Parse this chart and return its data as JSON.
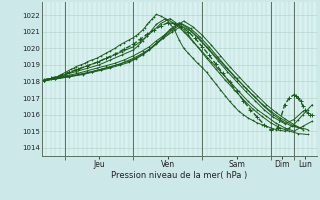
{
  "bg_color": "#cce8e8",
  "plot_bg_color": "#d8f0f0",
  "grid_color": "#b0d0c8",
  "line_color": "#1a5c1a",
  "ylabel_ticks": [
    1014,
    1015,
    1016,
    1017,
    1018,
    1019,
    1020,
    1021,
    1022
  ],
  "ymin": 1013.5,
  "ymax": 1022.8,
  "xlabel": "Pression niveau de la mer( hPa )",
  "day_labels": [
    "Jeu",
    "Ven",
    "Sam",
    "Dim",
    "Lun"
  ],
  "day_sep_x": [
    0.5,
    2.0,
    3.5,
    5.0,
    5.5
  ],
  "day_tick_x": [
    1.25,
    2.75,
    4.25,
    5.25,
    5.75
  ],
  "xmin": 0.0,
  "xmax": 6.0,
  "lines": [
    {
      "x": [
        0.05,
        0.15,
        0.25,
        0.35,
        0.45,
        0.55,
        0.65,
        0.7,
        0.75,
        0.85,
        0.95,
        1.0,
        1.1,
        1.2,
        1.3,
        1.4,
        1.5,
        1.6,
        1.7,
        1.8,
        1.9,
        2.0,
        2.05,
        2.1,
        2.2,
        2.25,
        2.3,
        2.35,
        2.4,
        2.45,
        2.5,
        2.6,
        2.7,
        2.8,
        2.9,
        3.0,
        3.1,
        3.2,
        3.3,
        3.4,
        3.5,
        3.6,
        3.7,
        3.8,
        3.9,
        4.0,
        4.1,
        4.2,
        4.3,
        4.4,
        4.5,
        4.6,
        4.7,
        4.8,
        4.9,
        5.0,
        5.1,
        5.2,
        5.3,
        5.35,
        5.4,
        5.5,
        5.6,
        5.7,
        5.8,
        5.9
      ],
      "y": [
        1018.1,
        1018.15,
        1018.2,
        1018.3,
        1018.45,
        1018.6,
        1018.75,
        1018.8,
        1018.9,
        1019.0,
        1019.1,
        1019.2,
        1019.3,
        1019.4,
        1019.55,
        1019.7,
        1019.85,
        1020.0,
        1020.2,
        1020.35,
        1020.5,
        1020.65,
        1020.75,
        1020.85,
        1021.1,
        1021.25,
        1021.45,
        1021.6,
        1021.75,
        1021.9,
        1022.05,
        1021.95,
        1021.8,
        1021.5,
        1021.1,
        1020.5,
        1020.0,
        1019.7,
        1019.4,
        1019.1,
        1018.85,
        1018.55,
        1018.2,
        1017.85,
        1017.5,
        1017.15,
        1016.8,
        1016.5,
        1016.2,
        1016.0,
        1015.8,
        1015.65,
        1015.5,
        1015.4,
        1015.3,
        1015.2,
        1015.1,
        1015.05,
        1015.0,
        1015.1,
        1015.2,
        1015.4,
        1015.7,
        1016.0,
        1016.3,
        1016.6
      ]
    },
    {
      "x": [
        0.05,
        0.25,
        0.5,
        0.75,
        1.0,
        1.25,
        1.5,
        1.75,
        2.0,
        2.1,
        2.2,
        2.3,
        2.4,
        2.5,
        2.7,
        2.9,
        3.1,
        3.3,
        3.5,
        3.7,
        3.9,
        4.1,
        4.3,
        4.5,
        4.7,
        4.9,
        5.1,
        5.3,
        5.5,
        5.7,
        5.9
      ],
      "y": [
        1018.1,
        1018.2,
        1018.4,
        1018.6,
        1018.8,
        1019.0,
        1019.3,
        1019.6,
        1019.9,
        1020.15,
        1020.45,
        1020.75,
        1021.1,
        1021.45,
        1021.8,
        1021.5,
        1021.0,
        1020.4,
        1019.8,
        1019.2,
        1018.6,
        1018.0,
        1017.4,
        1016.8,
        1016.3,
        1015.9,
        1015.5,
        1015.2,
        1015.0,
        1015.3,
        1015.6
      ]
    },
    {
      "x": [
        0.05,
        0.25,
        0.5,
        0.75,
        1.0,
        1.25,
        1.5,
        1.75,
        2.0,
        2.15,
        2.3,
        2.45,
        2.6,
        2.8,
        3.0,
        3.2,
        3.4,
        3.6,
        3.8,
        4.0,
        4.2,
        4.4,
        4.6,
        4.8,
        5.0,
        5.2,
        5.4,
        5.6,
        5.8
      ],
      "y": [
        1018.0,
        1018.2,
        1018.4,
        1018.7,
        1018.95,
        1019.2,
        1019.5,
        1019.8,
        1020.1,
        1020.4,
        1020.75,
        1021.1,
        1021.5,
        1021.8,
        1021.4,
        1020.8,
        1020.1,
        1019.4,
        1018.75,
        1018.1,
        1017.5,
        1016.9,
        1016.35,
        1015.9,
        1015.5,
        1015.2,
        1015.0,
        1014.85,
        1014.8
      ]
    },
    {
      "x": [
        0.05,
        0.3,
        0.6,
        0.9,
        1.1,
        1.3,
        1.5,
        1.7,
        2.0,
        2.2,
        2.35,
        2.5,
        2.65,
        2.8,
        3.0,
        3.2,
        3.4,
        3.6,
        3.8,
        4.0,
        4.2,
        4.4,
        4.6,
        4.8,
        5.0,
        5.2,
        5.5,
        5.8
      ],
      "y": [
        1018.05,
        1018.15,
        1018.3,
        1018.45,
        1018.6,
        1018.75,
        1018.9,
        1019.05,
        1019.4,
        1019.7,
        1019.95,
        1020.3,
        1020.7,
        1021.15,
        1021.55,
        1021.2,
        1020.7,
        1020.1,
        1019.5,
        1018.9,
        1018.3,
        1017.75,
        1017.2,
        1016.65,
        1016.2,
        1015.8,
        1015.3,
        1015.1
      ]
    },
    {
      "x": [
        0.05,
        0.3,
        0.55,
        0.8,
        1.0,
        1.2,
        1.4,
        1.6,
        1.8,
        2.0,
        2.2,
        2.35,
        2.5,
        2.7,
        2.9,
        3.1,
        3.3,
        3.5,
        3.7,
        3.9,
        4.1,
        4.3,
        4.5,
        4.7,
        4.9,
        5.1,
        5.3,
        5.5,
        5.7
      ],
      "y": [
        1018.05,
        1018.2,
        1018.35,
        1018.5,
        1018.65,
        1018.8,
        1018.95,
        1019.1,
        1019.3,
        1019.55,
        1019.85,
        1020.1,
        1020.45,
        1020.85,
        1021.3,
        1021.65,
        1021.3,
        1020.8,
        1020.2,
        1019.55,
        1018.9,
        1018.3,
        1017.7,
        1017.15,
        1016.6,
        1016.15,
        1015.75,
        1015.4,
        1015.1
      ]
    },
    {
      "x": [
        0.05,
        0.3,
        0.6,
        0.9,
        1.1,
        1.3,
        1.5,
        1.7,
        1.9,
        2.05,
        2.2,
        2.35,
        2.5,
        2.65,
        2.85,
        3.05,
        3.25,
        3.45,
        3.65,
        3.85,
        4.05,
        4.25,
        4.45,
        4.65,
        4.85,
        5.05,
        5.25,
        5.45,
        5.65
      ],
      "y": [
        1018.05,
        1018.18,
        1018.32,
        1018.48,
        1018.6,
        1018.72,
        1018.88,
        1019.05,
        1019.22,
        1019.4,
        1019.65,
        1019.95,
        1020.3,
        1020.65,
        1021.1,
        1021.5,
        1021.2,
        1020.7,
        1020.1,
        1019.45,
        1018.8,
        1018.2,
        1017.6,
        1017.05,
        1016.5,
        1016.0,
        1015.6,
        1015.3,
        1015.2
      ]
    },
    {
      "x": [
        0.05,
        0.3,
        0.6,
        0.9,
        1.1,
        1.3,
        1.5,
        1.7,
        1.9,
        2.05,
        2.2,
        2.35,
        2.5,
        2.65,
        2.85,
        3.05,
        3.25,
        3.45,
        3.65,
        3.85,
        4.05,
        4.25,
        4.45,
        4.65,
        4.85,
        5.05,
        5.3,
        5.5,
        5.7
      ],
      "y": [
        1018.05,
        1018.15,
        1018.28,
        1018.42,
        1018.55,
        1018.68,
        1018.82,
        1018.98,
        1019.15,
        1019.35,
        1019.6,
        1019.9,
        1020.25,
        1020.6,
        1021.0,
        1021.35,
        1021.05,
        1020.5,
        1019.9,
        1019.25,
        1018.6,
        1018.0,
        1017.4,
        1016.85,
        1016.3,
        1015.85,
        1015.45,
        1015.7,
        1016.2
      ]
    }
  ],
  "dot_line": {
    "x": [
      0.05,
      0.2,
      0.4,
      0.6,
      0.8,
      1.0,
      1.2,
      1.4,
      1.6,
      1.8,
      2.0,
      2.15,
      2.3,
      2.45,
      2.6,
      2.75,
      2.9,
      3.05,
      3.2,
      3.35,
      3.5,
      3.65,
      3.8,
      3.95,
      4.1,
      4.25,
      4.4,
      4.55,
      4.7,
      4.85,
      5.0,
      5.15,
      5.3,
      5.4,
      5.5,
      5.55,
      5.6,
      5.65,
      5.7,
      5.75,
      5.8,
      5.85,
      5.9
    ],
    "y": [
      1018.1,
      1018.2,
      1018.35,
      1018.55,
      1018.75,
      1018.95,
      1019.15,
      1019.4,
      1019.65,
      1019.95,
      1020.25,
      1020.55,
      1020.85,
      1021.1,
      1021.35,
      1021.55,
      1021.5,
      1021.3,
      1021.0,
      1020.6,
      1020.1,
      1019.6,
      1019.05,
      1018.5,
      1017.95,
      1017.4,
      1016.85,
      1016.3,
      1015.85,
      1015.4,
      1015.05,
      1015.2,
      1016.6,
      1017.0,
      1017.2,
      1017.15,
      1017.0,
      1016.8,
      1016.5,
      1016.3,
      1016.1,
      1016.0,
      1015.95
    ]
  }
}
